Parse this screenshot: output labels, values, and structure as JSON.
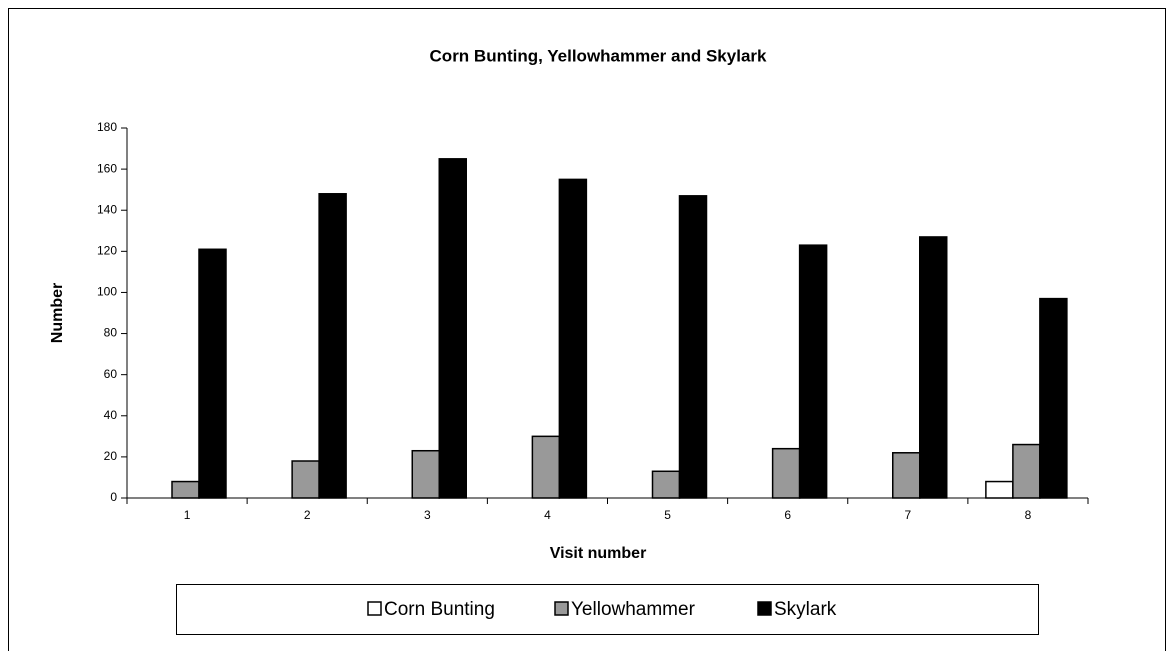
{
  "chart_data": {
    "type": "bar",
    "title": "Corn Bunting, Yellowhammer and Skylark",
    "xlabel": "Visit number",
    "ylabel": "Number",
    "categories": [
      "1",
      "2",
      "3",
      "4",
      "5",
      "6",
      "7",
      "8"
    ],
    "series": [
      {
        "name": "Corn Bunting",
        "color": "#ffffff",
        "values": [
          0,
          0,
          0,
          0,
          0,
          0,
          0,
          8
        ]
      },
      {
        "name": "Yellowhammer",
        "color": "#999999",
        "values": [
          8,
          18,
          23,
          30,
          13,
          24,
          22,
          26
        ]
      },
      {
        "name": "Skylark",
        "color": "#000000",
        "values": [
          121,
          148,
          165,
          155,
          147,
          123,
          127,
          97
        ]
      }
    ],
    "ylim": [
      0,
      180
    ],
    "yticks": [
      0,
      20,
      40,
      60,
      80,
      100,
      120,
      140,
      160,
      180
    ],
    "legend": "bottom"
  }
}
